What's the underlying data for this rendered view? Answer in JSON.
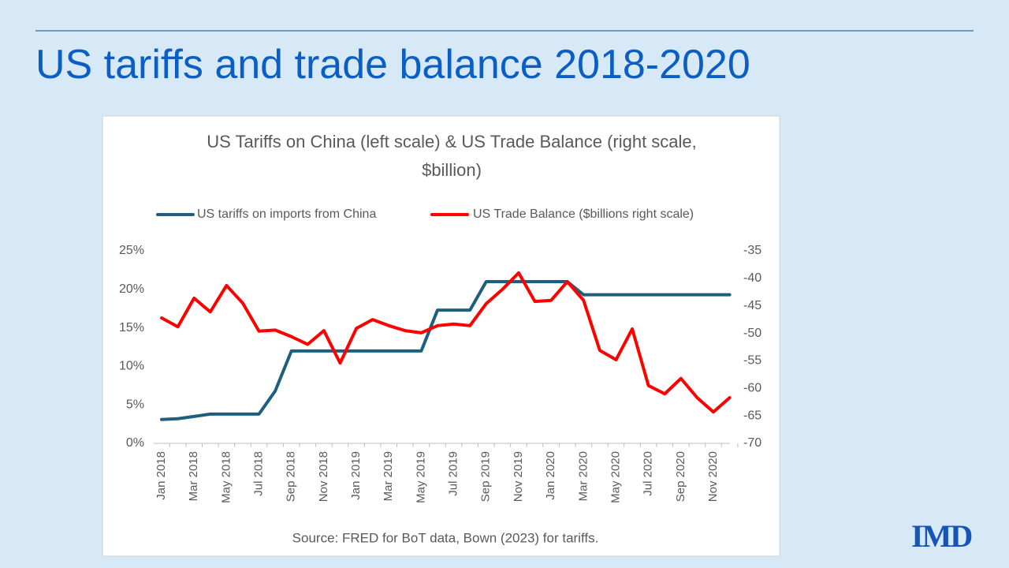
{
  "slide_title": "US tariffs and trade balance 2018-2020",
  "logo": "IMD",
  "chart_data": {
    "type": "line",
    "title": "US Tariffs on China (left scale) & US Trade Balance (right scale, $billion)",
    "source": "Source: FRED for BoT data, Bown (2023) for tariffs.",
    "categories": [
      "Jan 2018",
      null,
      "Mar 2018",
      null,
      "May 2018",
      null,
      "Jul 2018",
      null,
      "Sep 2018",
      null,
      "Nov 2018",
      null,
      "Jan 2019",
      null,
      "Mar 2019",
      null,
      "May 2019",
      null,
      "Jul 2019",
      null,
      "Sep 2019",
      null,
      "Nov 2019",
      null,
      "Jan 2020",
      null,
      "Mar 2020",
      null,
      "May 2020",
      null,
      "Jul 2020",
      null,
      "Sep 2020",
      null,
      "Nov 2020",
      null
    ],
    "series": [
      {
        "name": "US tariffs on imports from China",
        "color": "#1d5f7c",
        "axis": "y",
        "values": [
          3.1,
          3.2,
          3.5,
          3.8,
          3.8,
          3.8,
          3.8,
          6.8,
          12.0,
          12.0,
          12.0,
          12.0,
          12.0,
          12.0,
          12.0,
          12.0,
          12.0,
          17.3,
          17.3,
          17.3,
          21.0,
          21.0,
          21.0,
          21.0,
          21.0,
          21.0,
          19.3,
          19.3,
          19.3,
          19.3,
          19.3,
          19.3,
          19.3,
          19.3,
          19.3,
          19.3
        ]
      },
      {
        "name": "US Trade Balance ($billions right scale)",
        "color": "#ff0000",
        "axis": "y2",
        "values": [
          -47.2,
          -48.8,
          -43.6,
          -46.1,
          -41.3,
          -44.5,
          -49.6,
          -49.4,
          -50.6,
          -52.0,
          -49.5,
          -55.4,
          -49.1,
          -47.5,
          -48.6,
          -49.5,
          -49.9,
          -48.6,
          -48.3,
          -48.6,
          -44.6,
          -42.0,
          -39.0,
          -44.2,
          -44.0,
          -40.6,
          -44.0,
          -53.1,
          -54.8,
          -49.2,
          -59.5,
          -61.0,
          -58.2,
          -61.7,
          -64.3,
          -61.7
        ]
      }
    ],
    "ylim": [
      0,
      25
    ],
    "yticks": [
      {
        "value": 0,
        "label": "0%"
      },
      {
        "value": 5,
        "label": "5%"
      },
      {
        "value": 10,
        "label": "10%"
      },
      {
        "value": 15,
        "label": "15%"
      },
      {
        "value": 20,
        "label": "20%"
      },
      {
        "value": 25,
        "label": "25%"
      }
    ],
    "y2lim": [
      -70,
      -35
    ],
    "y2ticks": [
      -70,
      -65,
      -60,
      -55,
      -50,
      -45,
      -40,
      -35
    ],
    "grid": false,
    "legend": "top"
  }
}
